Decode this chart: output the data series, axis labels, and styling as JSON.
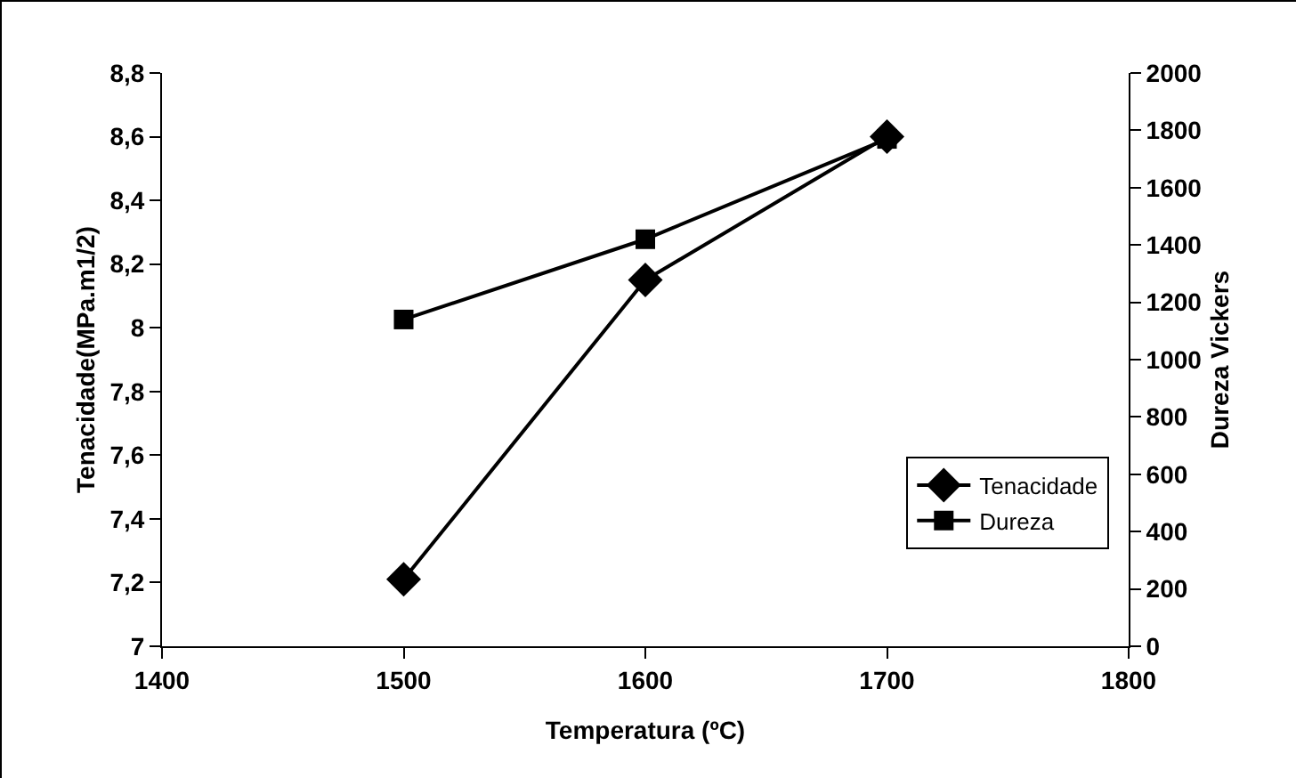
{
  "chart_data": {
    "type": "line",
    "xlabel": "Temperatura (ºC)",
    "ylabel": "Tenacidade(MPa.m1/2)",
    "y2label": "Dureza Vickers",
    "x": [
      1500,
      1600,
      1700
    ],
    "series": [
      {
        "name": "Tenacidade",
        "color": "#000000",
        "marker": "diamond",
        "values": [
          7.21,
          8.15,
          8.6
        ]
      },
      {
        "name": "Dureza",
        "color": "#000000",
        "marker": "square",
        "axis": "y2",
        "values": [
          1140,
          1420,
          1770
        ]
      }
    ],
    "xlim": [
      1400,
      1800
    ],
    "xticks": [
      1400,
      1500,
      1600,
      1700,
      1800
    ],
    "ylim": [
      7,
      8.8
    ],
    "yticks": [
      7,
      {
        "value": 7.2,
        "label": "7,2"
      },
      {
        "value": 7.4,
        "label": "7,4"
      },
      {
        "value": 7.6,
        "label": "7,6"
      },
      {
        "value": 7.8,
        "label": "7,8"
      },
      8,
      {
        "value": 8.2,
        "label": "8,2"
      },
      {
        "value": 8.4,
        "label": "8,4"
      },
      {
        "value": 8.6,
        "label": "8,6"
      },
      {
        "value": 8.8,
        "label": "8,8"
      }
    ],
    "y2lim": [
      0,
      2000
    ],
    "y2ticks": [
      0,
      200,
      400,
      600,
      800,
      1000,
      1200,
      1400,
      1600,
      1800,
      2000
    ],
    "grid": false,
    "legend": "right",
    "line_style": "solid"
  }
}
